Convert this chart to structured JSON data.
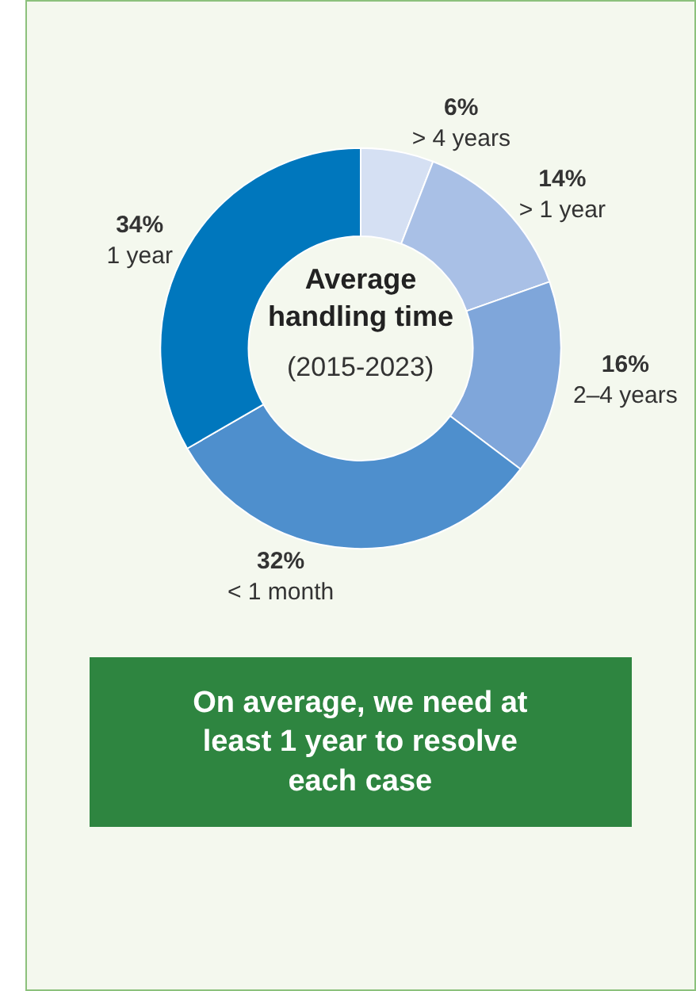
{
  "chart_data": {
    "type": "donut",
    "title": "Average handling time",
    "subtitle": "(2015-2023)",
    "categories": [
      "> 4 years",
      "> 1 year",
      "2–4 years",
      "< 1 month",
      "1 year"
    ],
    "values": [
      6,
      14,
      16,
      32,
      34
    ],
    "value_labels": [
      "6%",
      "14%",
      "16%",
      "32%",
      "34%"
    ],
    "colors": [
      "#d5e0f3",
      "#a9c0e6",
      "#7fa6da",
      "#4e8fcd",
      "#0077bd"
    ],
    "annotations": [
      "On average, we need at least 1 year to resolve each case"
    ],
    "legend": false
  }
}
